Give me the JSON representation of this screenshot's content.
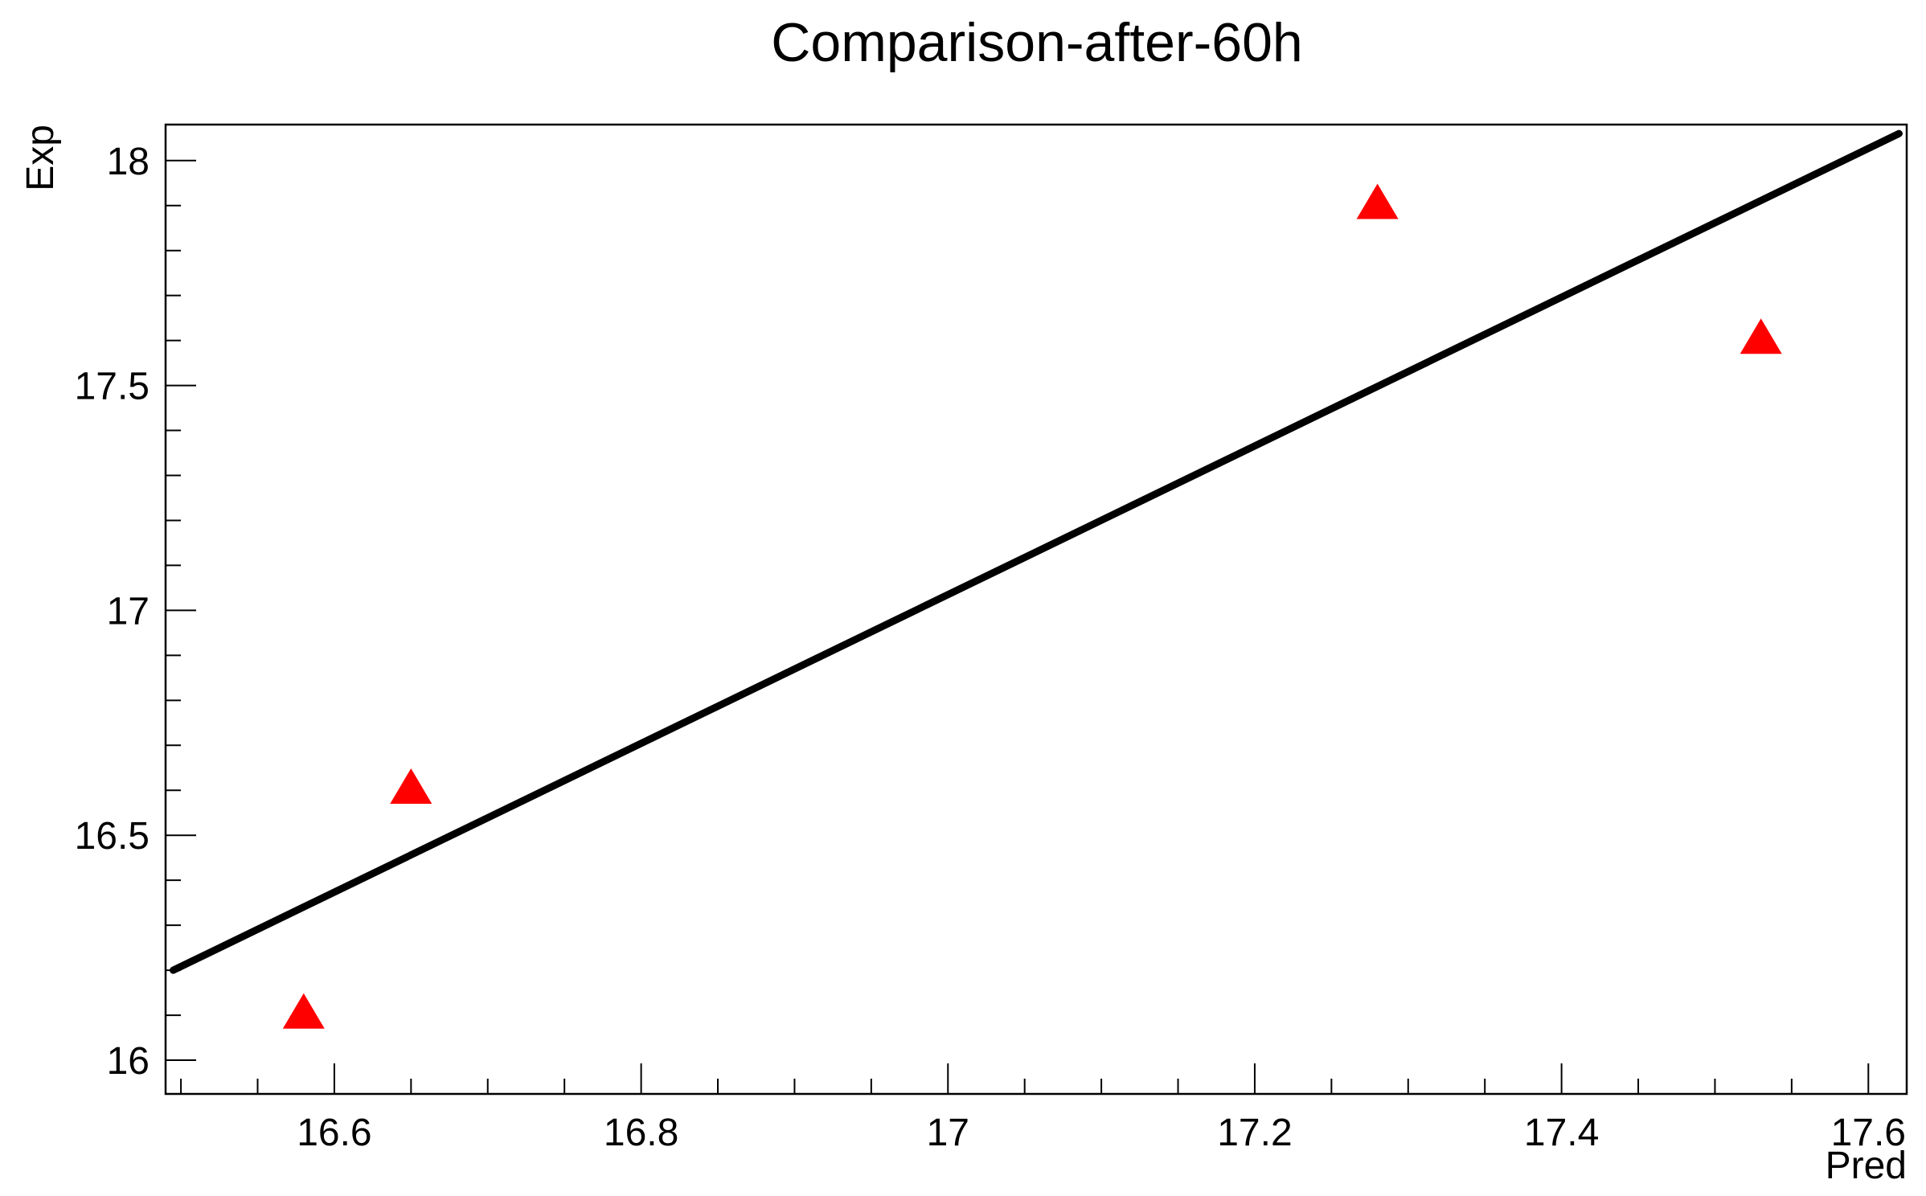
{
  "chart_data": {
    "type": "scatter",
    "title": "Comparison-after-60h",
    "xlabel": "Pred",
    "ylabel": "Exp",
    "xlim": [
      16.49,
      17.625
    ],
    "ylim": [
      15.925,
      18.08
    ],
    "grid": false,
    "x_ticks": [
      {
        "value": 16.6,
        "label": "16.6"
      },
      {
        "value": 16.8,
        "label": "16.8"
      },
      {
        "value": 17.0,
        "label": "17"
      },
      {
        "value": 17.2,
        "label": "17.2"
      },
      {
        "value": 17.4,
        "label": "17.4"
      },
      {
        "value": 17.6,
        "label": "17.6"
      }
    ],
    "y_ticks": [
      {
        "value": 16.0,
        "label": "16"
      },
      {
        "value": 16.5,
        "label": "16.5"
      },
      {
        "value": 17.0,
        "label": "17"
      },
      {
        "value": 17.5,
        "label": "17.5"
      },
      {
        "value": 18.0,
        "label": "18"
      }
    ],
    "x_minor_step": 0.05,
    "y_minor_step": 0.1,
    "series": [
      {
        "type": "line",
        "color": "#000000",
        "x": [
          16.495,
          17.62
        ],
        "y": [
          16.2,
          18.06
        ]
      },
      {
        "type": "scatter",
        "marker": "triangle-up",
        "color": "#ff0000",
        "x": [
          16.58,
          16.65,
          17.28,
          17.53
        ],
        "y": [
          16.1,
          16.6,
          17.9,
          17.6
        ]
      }
    ]
  }
}
